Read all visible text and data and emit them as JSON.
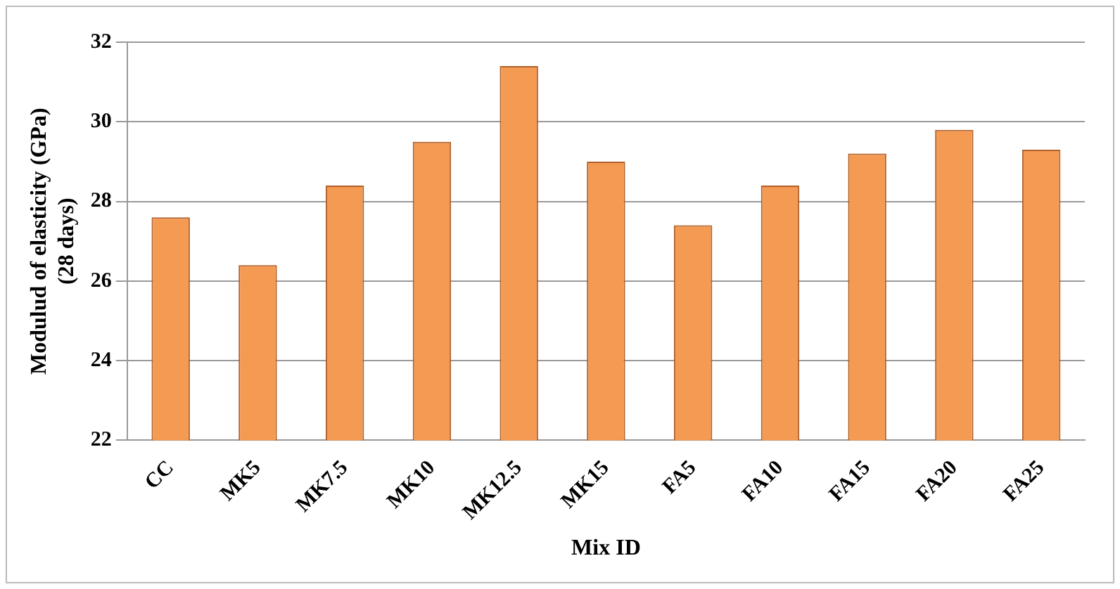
{
  "chart_data": {
    "type": "bar",
    "xlabel": "Mix ID",
    "ylabel": "Modulud of elasticity (GPa)\n(28 days)",
    "categories": [
      "CC",
      "MK5",
      "MK7.5",
      "MK10",
      "MK12.5",
      "MK15",
      "FA5",
      "FA10",
      "FA15",
      "FA20",
      "FA25"
    ],
    "values": [
      27.6,
      26.4,
      28.4,
      29.5,
      31.4,
      29.0,
      27.4,
      28.4,
      29.2,
      29.8,
      29.3
    ],
    "color": "#f59a52",
    "ylim": [
      22,
      32
    ],
    "yticks": [
      22,
      24,
      26,
      28,
      30,
      32
    ],
    "grid": "y",
    "legend": false
  }
}
